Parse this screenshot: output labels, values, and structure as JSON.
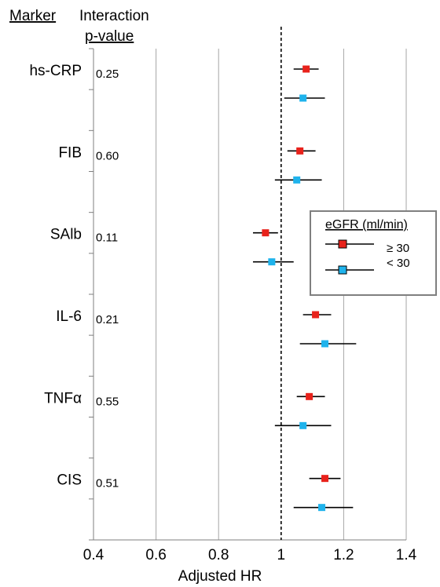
{
  "headers": {
    "marker": "Marker",
    "interaction_line1": "Interaction",
    "interaction_line2": "p-value"
  },
  "chart_data": {
    "type": "forest",
    "xlabel": "Adjusted HR",
    "xlim": [
      0.4,
      1.4
    ],
    "xticks": [
      "0.4",
      "0.6",
      "0.8",
      "1",
      "1.2",
      "1.4"
    ],
    "reference_line": 1.0,
    "grid": "vertical",
    "legend": {
      "title": "eGFR (ml/min)",
      "position": "right",
      "entries": [
        {
          "label": "≥ 30",
          "color": "#e8221b"
        },
        {
          "label": "< 30",
          "color": "#1fb3ec"
        }
      ]
    },
    "markers": [
      {
        "name": "hs-CRP",
        "p_value": "0.25",
        "rows": [
          {
            "group": "≥ 30",
            "hr": 1.08,
            "lo": 1.04,
            "hi": 1.12
          },
          {
            "group": "< 30",
            "hr": 1.07,
            "lo": 1.01,
            "hi": 1.14
          }
        ]
      },
      {
        "name": "FIB",
        "p_value": "0.60",
        "rows": [
          {
            "group": "≥ 30",
            "hr": 1.06,
            "lo": 1.02,
            "hi": 1.11
          },
          {
            "group": "< 30",
            "hr": 1.05,
            "lo": 0.98,
            "hi": 1.13
          }
        ]
      },
      {
        "name": "SAlb",
        "p_value": "0.11",
        "rows": [
          {
            "group": "≥ 30",
            "hr": 0.95,
            "lo": 0.91,
            "hi": 0.99
          },
          {
            "group": "< 30",
            "hr": 0.97,
            "lo": 0.91,
            "hi": 1.04
          }
        ]
      },
      {
        "name": "IL-6",
        "p_value": "0.21",
        "rows": [
          {
            "group": "≥ 30",
            "hr": 1.11,
            "lo": 1.07,
            "hi": 1.16
          },
          {
            "group": "< 30",
            "hr": 1.14,
            "lo": 1.06,
            "hi": 1.24
          }
        ]
      },
      {
        "name": "TNFα",
        "p_value": "0.55",
        "rows": [
          {
            "group": "≥ 30",
            "hr": 1.09,
            "lo": 1.05,
            "hi": 1.14
          },
          {
            "group": "< 30",
            "hr": 1.07,
            "lo": 0.98,
            "hi": 1.16
          }
        ]
      },
      {
        "name": "CIS",
        "p_value": "0.51",
        "rows": [
          {
            "group": "≥ 30",
            "hr": 1.14,
            "lo": 1.09,
            "hi": 1.19
          },
          {
            "group": "< 30",
            "hr": 1.13,
            "lo": 1.04,
            "hi": 1.23
          }
        ]
      }
    ]
  }
}
